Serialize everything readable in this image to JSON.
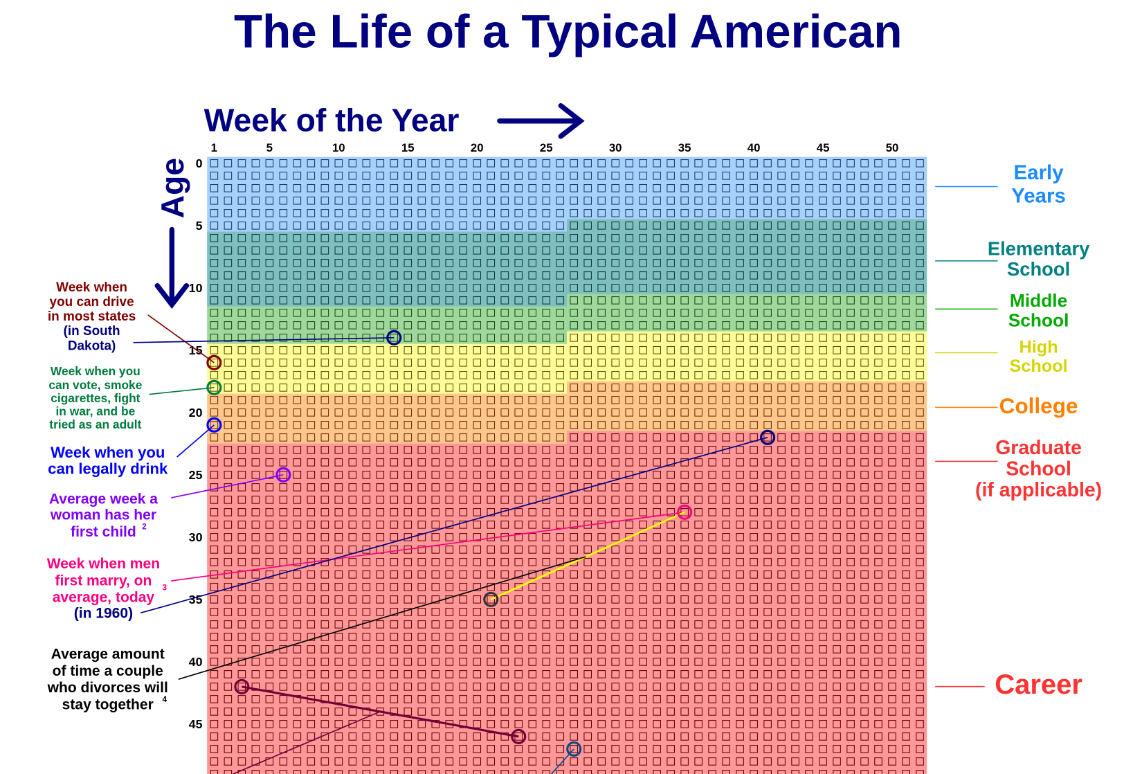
{
  "title": "The Life of a Typical American",
  "x_axis": {
    "label": "Week of the Year",
    "ticks": [
      "1",
      "5",
      "10",
      "15",
      "20",
      "25",
      "30",
      "35",
      "40",
      "45",
      "50"
    ]
  },
  "y_axis": {
    "label": "Age",
    "ticks": [
      "0",
      "5",
      "10",
      "15",
      "20",
      "25",
      "30",
      "35",
      "40",
      "45"
    ]
  },
  "grid": {
    "weeks_per_year": 52,
    "years_visible": 50
  },
  "stages": [
    {
      "name": "early-years",
      "lines": [
        "Early",
        "Years"
      ],
      "color": "#1a8cff",
      "fill": "#a6d1fb",
      "stroke": "#1a3a70",
      "start": {
        "age": 0,
        "week": 1
      }
    },
    {
      "name": "elementary-school",
      "lines": [
        "Elementary",
        "School"
      ],
      "color": "#008080",
      "fill": "#7fbfbf",
      "stroke": "#0a3a3a",
      "start": {
        "age": 5,
        "week": 27
      }
    },
    {
      "name": "middle-school",
      "lines": [
        "Middle",
        "School"
      ],
      "color": "#00aa00",
      "fill": "#9fd89a",
      "stroke": "#1a4a1a",
      "start": {
        "age": 11,
        "week": 27
      }
    },
    {
      "name": "high-school",
      "lines": [
        "High",
        "School"
      ],
      "color": "#d4d400",
      "fill": "#ffff99",
      "stroke": "#5a4a00",
      "start": {
        "age": 14,
        "week": 27
      }
    },
    {
      "name": "college",
      "lines": [
        "College"
      ],
      "color": "#ff8000",
      "fill": "#ffc78c",
      "stroke": "#6a3000",
      "start": {
        "age": 18,
        "week": 27
      }
    },
    {
      "name": "graduate-school",
      "lines": [
        "Graduate",
        "School",
        "(if applicable)"
      ],
      "color": "#ff3333",
      "fill": "#ff9999",
      "stroke": "#600000",
      "start": {
        "age": 22,
        "week": 27
      }
    },
    {
      "name": "career",
      "lines": [
        "Career"
      ],
      "color": "#ff3333",
      "fill": "#ff9999",
      "stroke": "#600000",
      "start": null
    }
  ],
  "annotations": {
    "drive": {
      "lines": [
        "Week when",
        "you can drive",
        "in most states"
      ],
      "color": "#800000",
      "circle": {
        "age": 16,
        "week": 1
      }
    },
    "drive_sd": {
      "lines": [
        "(in South",
        "Dakota)"
      ],
      "color": "#000080",
      "circle": {
        "age": 14,
        "week": 14
      }
    },
    "vote": {
      "lines": [
        "Week when you",
        "can vote, smoke",
        "cigarettes, fight",
        "in war, and be",
        "tried as an adult"
      ],
      "color": "#007a3d",
      "circle": {
        "age": 18,
        "week": 1
      }
    },
    "drink": {
      "lines": [
        "Week when you",
        "can legally drink"
      ],
      "color": "#0000ff",
      "circle": {
        "age": 21,
        "week": 1
      }
    },
    "first_child": {
      "lines": [
        "Average week a",
        "woman has her",
        "first child"
      ],
      "sup": "2",
      "color": "#8000ff",
      "circle": {
        "age": 25,
        "week": 6
      }
    },
    "marry": {
      "lines": [
        "Week when men",
        "first marry, on",
        "average, today"
      ],
      "sup": "3",
      "color": "#ff0080",
      "circle": {
        "age": 28,
        "week": 35
      }
    },
    "marry_1960": {
      "lines": [
        "(in 1960)"
      ],
      "color": "#000080",
      "circle": {
        "age": 22,
        "week": 41
      }
    },
    "divorce": {
      "lines": [
        "Average amount",
        "of time a couple",
        "who divorces will",
        "stay together"
      ],
      "sup": "4",
      "color": "#000000",
      "circle": {
        "age": 35,
        "week": 21
      },
      "span_color": "#ffff00"
    },
    "lower_span": {
      "color": "#70003a",
      "circles": [
        {
          "age": 42,
          "week": 3
        },
        {
          "age": 46,
          "week": 23
        }
      ]
    },
    "lower_point": {
      "color": "#0a4a8a",
      "circle": {
        "age": 47,
        "week": 27
      }
    }
  }
}
